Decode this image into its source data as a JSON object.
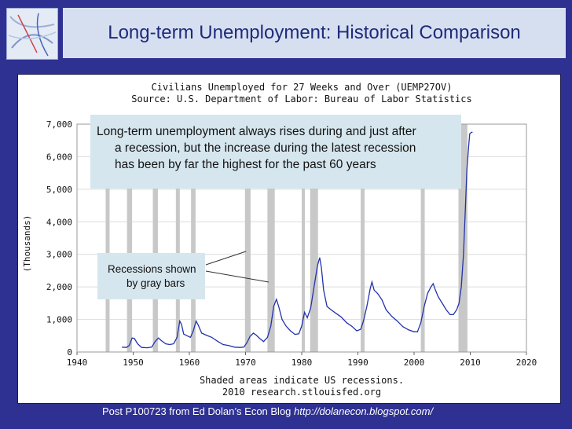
{
  "slide": {
    "title": "Long-term Unemployment: Historical Comparison",
    "footer_text": "Post P100723 from Ed Dolan’s Econ Blog",
    "footer_url": "http://dolanecon.blogspot.com/"
  },
  "annotations": {
    "main_line1": "Long-term unemployment always rises during and just after",
    "main_line2": "a recession, but the increase during the latest recession",
    "main_line3": "has been by far the highest for the past 60 years",
    "recession_line1": "Recessions shown",
    "recession_line2": "by gray bars"
  },
  "colors": {
    "slide_background": "#2e3192",
    "title_box": "#d6dff0",
    "series_line": "#2233aa",
    "recession_bars": "#c8c8c8",
    "callout_fill": "#d6e6ee"
  },
  "chart_data": {
    "type": "line",
    "title": "Civilians Unemployed for 27 Weeks and Over (UEMP27OV)",
    "subtitle": "Source: U.S. Department of Labor: Bureau of Labor Statistics",
    "ylabel": "(Thousands)",
    "xlabel": "Shaded areas indicate US recessions.",
    "credit": "2010 research.stlouisfed.org",
    "xlim": [
      1940,
      2020
    ],
    "ylim": [
      0,
      7000
    ],
    "x_ticks": [
      "1940",
      "1950",
      "1960",
      "1970",
      "1980",
      "1990",
      "2000",
      "2010",
      "2020"
    ],
    "y_ticks": [
      "0",
      "1,000",
      "2,000",
      "3,000",
      "4,000",
      "5,000",
      "6,000",
      "7,000"
    ],
    "grid": "horizontal",
    "recessions": [
      [
        1945.1,
        1945.8
      ],
      [
        1948.9,
        1949.8
      ],
      [
        1953.5,
        1954.4
      ],
      [
        1957.6,
        1958.3
      ],
      [
        1960.3,
        1961.1
      ],
      [
        1969.9,
        1970.9
      ],
      [
        1973.9,
        1975.2
      ],
      [
        1980.0,
        1980.5
      ],
      [
        1981.5,
        1982.9
      ],
      [
        1990.5,
        1991.2
      ],
      [
        2001.2,
        2001.9
      ],
      [
        2007.9,
        2009.5
      ]
    ],
    "series": [
      {
        "x": [
          1948.0,
          1948.8,
          1949.3,
          1949.8,
          1950.2,
          1950.8,
          1951.5,
          1952.5,
          1953.3,
          1953.9,
          1954.5,
          1955.0,
          1955.8,
          1956.5,
          1957.2,
          1957.8,
          1958.3,
          1958.6,
          1959.0,
          1959.6,
          1960.2,
          1960.7,
          1961.2,
          1961.6,
          1962.2,
          1963.0,
          1964.0,
          1965.0,
          1966.0,
          1967.0,
          1968.0,
          1969.0,
          1969.7,
          1970.3,
          1970.8,
          1971.4,
          1971.9,
          1972.5,
          1973.2,
          1973.9,
          1974.5,
          1975.0,
          1975.5,
          1975.9,
          1976.5,
          1977.2,
          1978.0,
          1978.8,
          1979.5,
          1980.0,
          1980.5,
          1981.0,
          1981.6,
          1982.2,
          1982.8,
          1983.2,
          1983.5,
          1983.9,
          1984.5,
          1985.2,
          1986.0,
          1987.0,
          1988.0,
          1989.0,
          1989.8,
          1990.5,
          1991.0,
          1991.6,
          1992.2,
          1992.5,
          1992.9,
          1993.5,
          1994.3,
          1995.0,
          1996.0,
          1997.0,
          1998.0,
          1999.0,
          2000.0,
          2000.6,
          2001.2,
          2001.8,
          2002.4,
          2003.0,
          2003.4,
          2003.8,
          2004.3,
          2005.0,
          2005.7,
          2006.4,
          2007.0,
          2007.6,
          2008.0,
          2008.4,
          2008.8,
          2009.1,
          2009.4,
          2009.7,
          2009.9,
          2010.2,
          2010.4
        ],
        "y": [
          150,
          140,
          200,
          430,
          420,
          250,
          140,
          130,
          150,
          320,
          430,
          350,
          250,
          230,
          250,
          450,
          950,
          850,
          550,
          500,
          450,
          650,
          950,
          820,
          580,
          520,
          450,
          330,
          230,
          200,
          150,
          140,
          150,
          300,
          480,
          580,
          520,
          420,
          320,
          450,
          800,
          1400,
          1620,
          1400,
          1000,
          800,
          650,
          540,
          560,
          800,
          1220,
          1050,
          1350,
          2000,
          2650,
          2900,
          2600,
          1900,
          1400,
          1300,
          1200,
          1080,
          900,
          780,
          650,
          700,
          950,
          1400,
          1950,
          2150,
          1900,
          1800,
          1600,
          1300,
          1100,
          950,
          780,
          680,
          620,
          620,
          900,
          1400,
          1800,
          2000,
          2100,
          1900,
          1700,
          1500,
          1300,
          1150,
          1150,
          1300,
          1500,
          2000,
          3000,
          4300,
          5600,
          6300,
          6700,
          6750,
          6750
        ]
      }
    ]
  }
}
